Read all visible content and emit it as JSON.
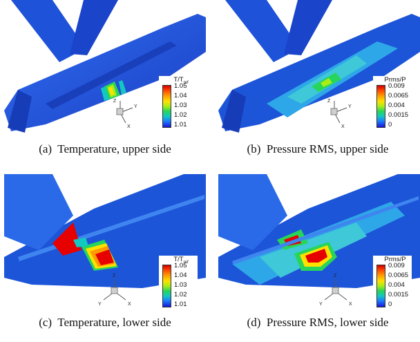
{
  "panels": [
    {
      "id": "a",
      "caption_label": "(a)",
      "caption_text": "Temperature, upper side",
      "legend_title_main": "T/T",
      "legend_title_sub": "ref",
      "legend_values": [
        "1.05",
        "1.04",
        "1.03",
        "1.02",
        "1.01"
      ],
      "axes": [
        "Z",
        "Y",
        "X"
      ]
    },
    {
      "id": "b",
      "caption_label": "(b)",
      "caption_text": "Pressure RMS, upper side",
      "legend_title_main": "Prms/P",
      "legend_title_sub": "",
      "legend_values": [
        "0.009",
        "0.0065",
        "0.004",
        "0.0015",
        "0"
      ],
      "axes": [
        "Z",
        "Y",
        "X"
      ]
    },
    {
      "id": "c",
      "caption_label": "(c)",
      "caption_text": "Temperature, lower side",
      "legend_title_main": "T/T",
      "legend_title_sub": "ref",
      "legend_values": [
        "1.05",
        "1.04",
        "1.03",
        "1.02",
        "1.01"
      ],
      "axes": [
        "Z",
        "Y",
        "X"
      ]
    },
    {
      "id": "d",
      "caption_label": "(d)",
      "caption_text": "Pressure RMS, lower side",
      "legend_title_main": "Prms/P",
      "legend_title_sub": "",
      "legend_values": [
        "0.009",
        "0.0065",
        "0.004",
        "0.0015",
        "0"
      ],
      "axes": [
        "Z",
        "Y",
        "X"
      ]
    }
  ],
  "colors": {
    "background": "#ffffff",
    "surface_base": "#1a4fd8",
    "surface_light": "#2f78ee",
    "hot": "#e60000",
    "warm": "#ffe100",
    "mid": "#27d55a",
    "cool": "#13c8c0"
  }
}
